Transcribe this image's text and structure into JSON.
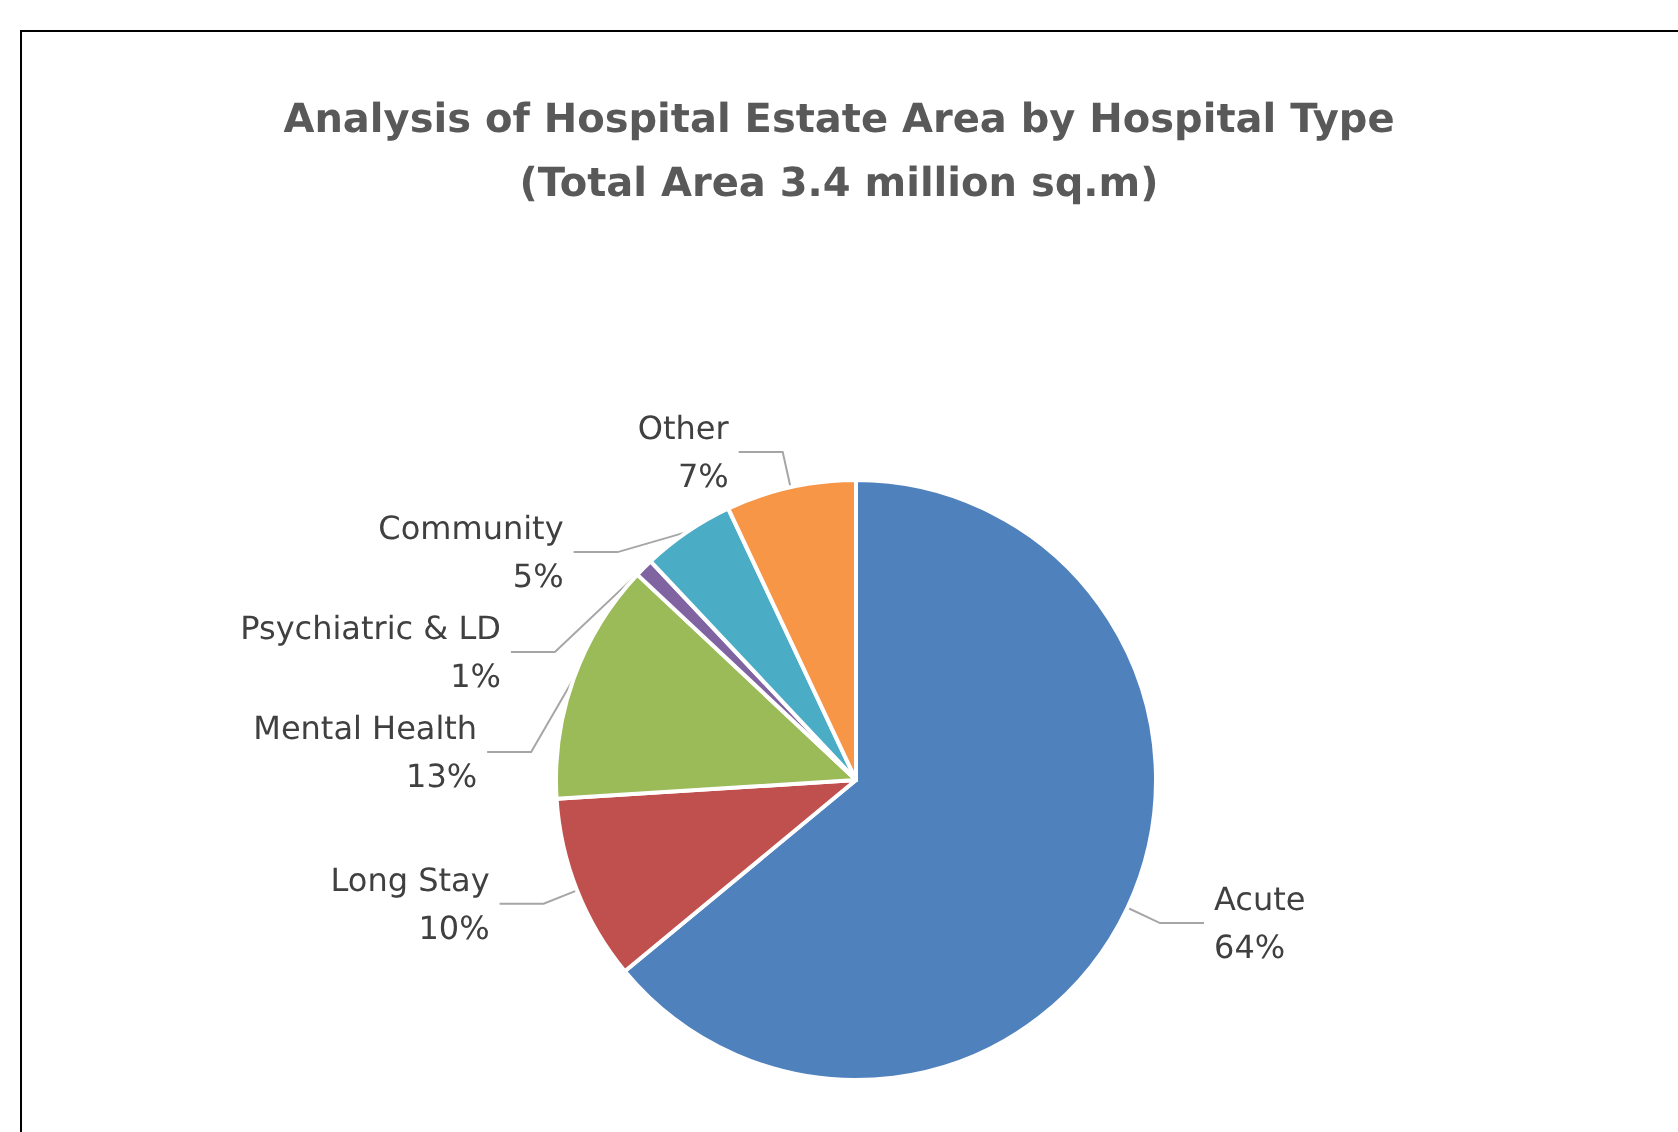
{
  "chart_data": {
    "type": "pie",
    "title": "Analysis of Hospital Estate Area by Hospital Type\n(Total Area 3.4 million sq.m)",
    "categories": [
      "Acute",
      "Long Stay",
      "Mental Health",
      "Psychiatric & LD",
      "Community",
      "Other"
    ],
    "values": [
      64,
      10,
      13,
      1,
      5,
      7
    ],
    "colors": [
      "#4f81bd",
      "#c0504d",
      "#9bbb59",
      "#8064a2",
      "#4bacc6",
      "#f79646"
    ],
    "value_labels": [
      "64%",
      "10%",
      "13%",
      "1%",
      "5%",
      "7%"
    ],
    "legend": false
  }
}
